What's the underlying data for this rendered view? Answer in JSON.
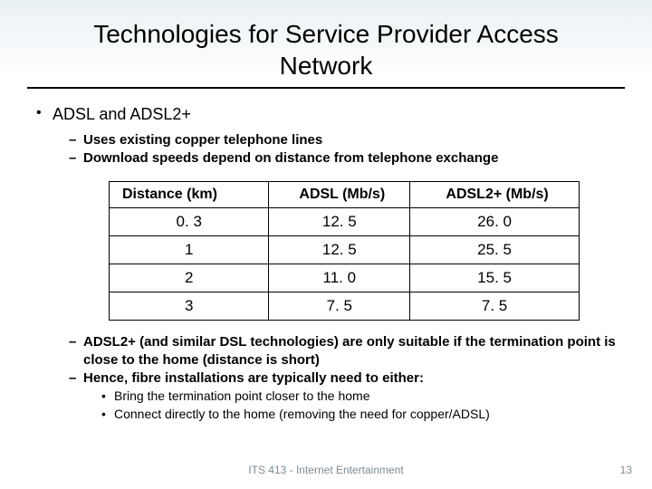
{
  "title": "Technologies for Service Provider Access Network",
  "heading": "ADSL and ADSL2+",
  "sub1": "Uses existing copper telephone lines",
  "sub2": "Download speeds depend on distance from telephone exchange",
  "table": {
    "columns": [
      "Distance (km)",
      "ADSL (Mb/s)",
      "ADSL2+ (Mb/s)"
    ],
    "rows": [
      [
        "0. 3",
        "12. 5",
        "26. 0"
      ],
      [
        "1",
        "12. 5",
        "25. 5"
      ],
      [
        "2",
        "11. 0",
        "15. 5"
      ],
      [
        "3",
        "7. 5",
        "7. 5"
      ]
    ],
    "border_color": "#000000",
    "header_fontsize": 16,
    "cell_fontsize": 17,
    "col_widths": [
      "34%",
      "30%",
      "36%"
    ]
  },
  "sub3": "ADSL2+ (and similar DSL technologies) are only suitable if the termination point is close to the home (distance is short)",
  "sub4": "Hence, fibre installations are typically need to either:",
  "sub4a": "Bring the termination point closer to the home",
  "sub4b": "Connect directly to the home (removing the need for copper/ADSL)",
  "footer": "ITS 413 - Internet Entertainment",
  "page_number": "13",
  "colors": {
    "title_underline": "#000000",
    "footer_text": "#7a8a96",
    "background_top": "#e8f0f4",
    "background_bottom": "#ffffff"
  }
}
